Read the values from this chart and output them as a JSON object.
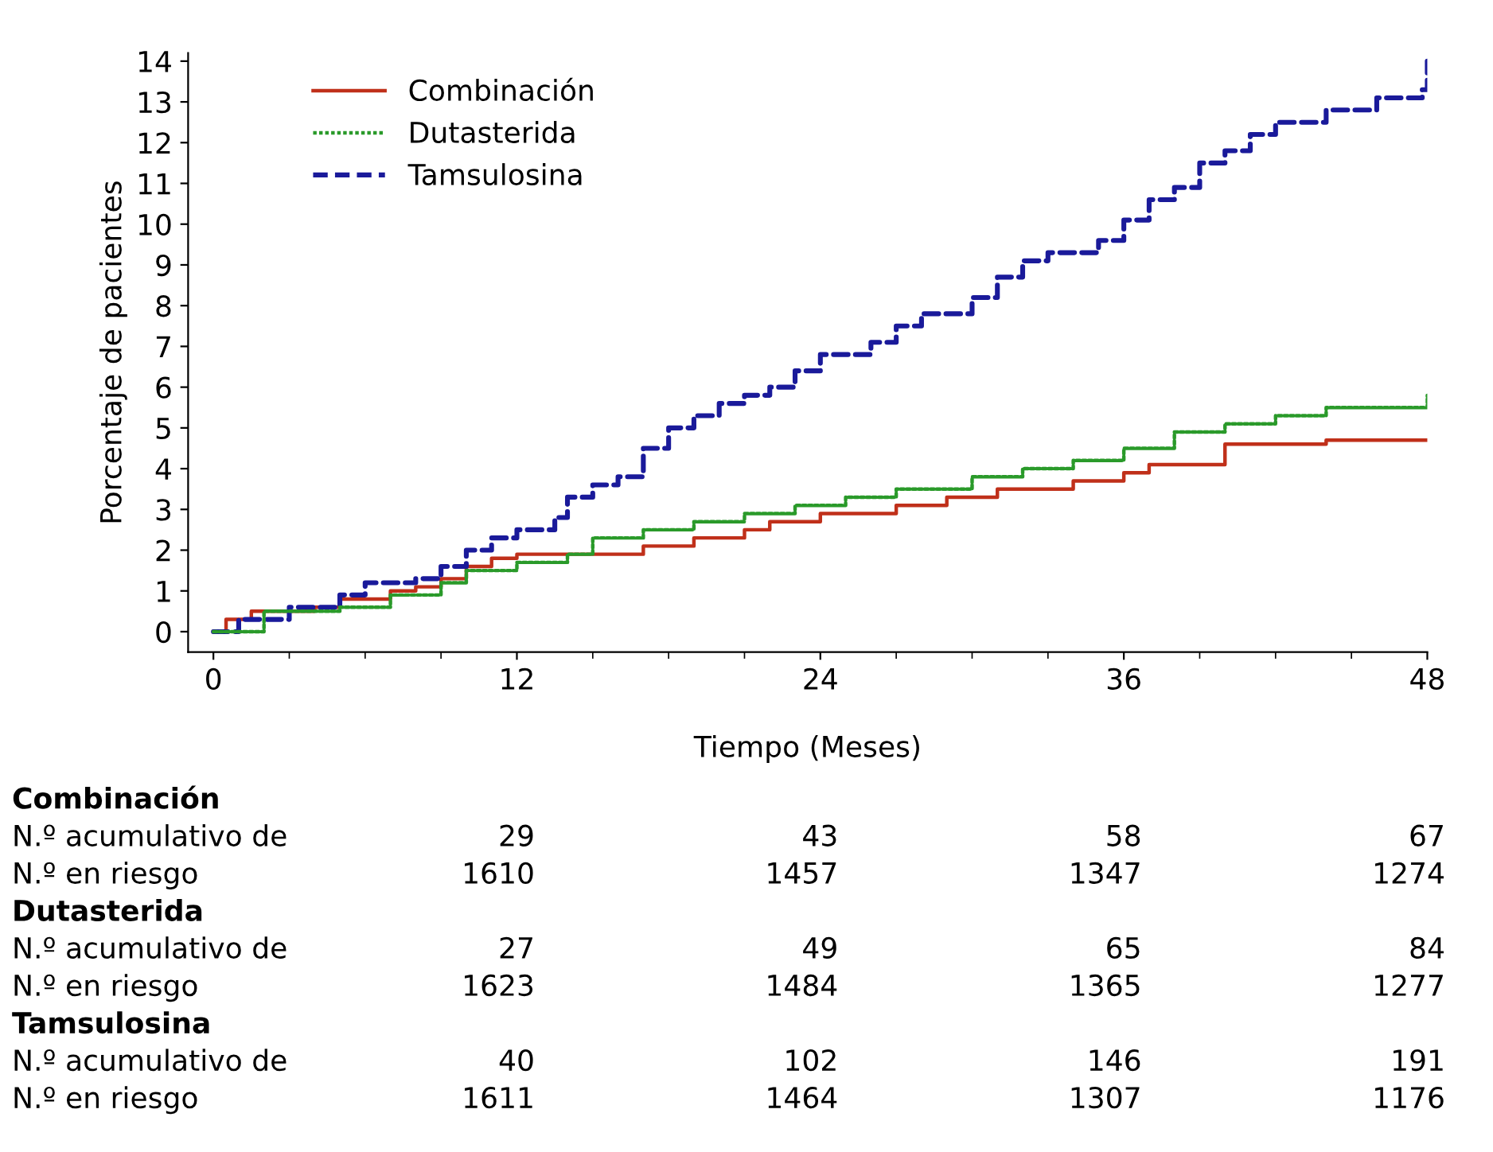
{
  "chart_data": {
    "type": "step",
    "xlabel": "Tiempo (Meses)",
    "ylabel": "Porcentaje de pacientes",
    "xlim": [
      -1,
      48
    ],
    "xticks": [
      0,
      12,
      24,
      36,
      48
    ],
    "ylim": [
      -0.5,
      14.2
    ],
    "yticks": [
      0,
      1,
      2,
      3,
      4,
      5,
      6,
      7,
      8,
      9,
      10,
      11,
      12,
      13,
      14
    ],
    "grid": false,
    "legend": "top left",
    "series": [
      {
        "name": "Combinación",
        "color": "#c0301a",
        "line_style": "solid",
        "x": [
          0,
          0.5,
          1.5,
          4,
          5,
          7,
          8,
          9,
          10,
          11,
          12,
          17,
          19,
          21,
          22,
          24,
          27,
          29,
          31,
          34,
          36,
          37,
          40,
          44,
          48
        ],
        "values": [
          0,
          0.3,
          0.5,
          0.6,
          0.8,
          1.0,
          1.1,
          1.3,
          1.6,
          1.8,
          1.9,
          2.1,
          2.3,
          2.5,
          2.7,
          2.9,
          3.1,
          3.3,
          3.5,
          3.7,
          3.9,
          4.1,
          4.6,
          4.7,
          4.7
        ]
      },
      {
        "name": "Dutasterida",
        "color": "#2a9a2a",
        "line_style": "dotted",
        "x": [
          0,
          2,
          5,
          7,
          9,
          10,
          12,
          14,
          15,
          17,
          19,
          21,
          23,
          25,
          27,
          30,
          32,
          34,
          36,
          38,
          40,
          42,
          44,
          47,
          48
        ],
        "values": [
          0,
          0.5,
          0.6,
          0.9,
          1.2,
          1.5,
          1.7,
          1.9,
          2.3,
          2.5,
          2.7,
          2.9,
          3.1,
          3.3,
          3.5,
          3.8,
          4.0,
          4.2,
          4.5,
          4.9,
          5.1,
          5.3,
          5.5,
          5.5,
          5.8
        ]
      },
      {
        "name": "Tamsulosina",
        "color": "#1a1a9a",
        "line_style": "dashed",
        "x": [
          0,
          1,
          3,
          5,
          6,
          8,
          9,
          10,
          11,
          12,
          13.5,
          14,
          15,
          16,
          17,
          18,
          19,
          20,
          21,
          22,
          23,
          24,
          26,
          27,
          28,
          30,
          31,
          32,
          33,
          35,
          36,
          37,
          38,
          39,
          40,
          41,
          42,
          44,
          46,
          47.8,
          48
        ],
        "values": [
          0,
          0.3,
          0.6,
          0.9,
          1.2,
          1.3,
          1.6,
          2.0,
          2.3,
          2.5,
          2.8,
          3.3,
          3.6,
          3.8,
          4.5,
          5.0,
          5.3,
          5.6,
          5.8,
          6.0,
          6.4,
          6.8,
          7.1,
          7.5,
          7.8,
          8.2,
          8.7,
          9.1,
          9.3,
          9.6,
          10.1,
          10.6,
          10.9,
          11.5,
          11.8,
          12.2,
          12.5,
          12.8,
          13.1,
          13.3,
          14.0
        ]
      }
    ],
    "annotations": [
      "Combinación",
      "N.º acumulativo de",
      "29",
      "43",
      "58",
      "67",
      "N.º en riesgo",
      "1610",
      "1457",
      "1347",
      "1274",
      "Dutasterida",
      "N.º acumulativo de",
      "27",
      "49",
      "65",
      "84",
      "N.º en riesgo",
      "1623",
      "1484",
      "1365",
      "1277",
      "Tamsulosina",
      "N.º acumulativo de",
      "40",
      "102",
      "146",
      "191",
      "N.º en riesgo",
      "1611",
      "1464",
      "1307",
      "1176"
    ]
  }
}
